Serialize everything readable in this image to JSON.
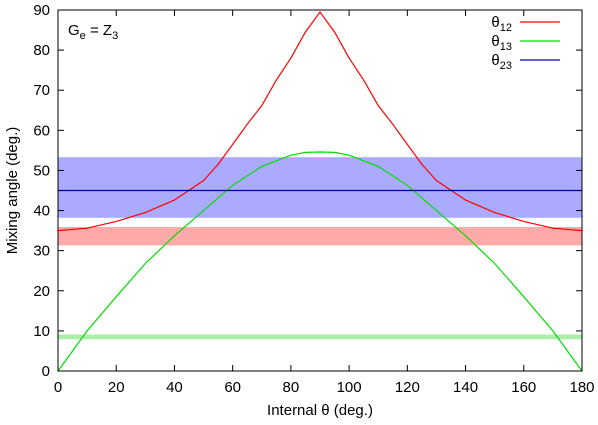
{
  "chart_data": {
    "type": "line",
    "xlabel": "Internal θ (deg.)",
    "ylabel": "Mixing angle (deg.)",
    "xlim": [
      0,
      180
    ],
    "ylim": [
      0,
      90
    ],
    "xticks": [
      0,
      20,
      40,
      60,
      80,
      100,
      120,
      140,
      160,
      180
    ],
    "yticks": [
      0,
      10,
      20,
      30,
      40,
      50,
      60,
      70,
      80,
      90
    ],
    "grid": false,
    "legend_position": "top-right",
    "annotation": {
      "base": "G",
      "base_sub": "e",
      "mid": " = Z",
      "mid_sub": "3"
    },
    "bands": [
      {
        "name": "theta23-band",
        "y_range": [
          38.2,
          53.3
        ],
        "color": "#aaaaff"
      },
      {
        "name": "theta12-band",
        "y_range": [
          31.3,
          35.9
        ],
        "color": "#ffaaaa"
      },
      {
        "name": "theta13-band",
        "y_range": [
          7.9,
          9.1
        ],
        "color": "#aaeeaa"
      }
    ],
    "series": [
      {
        "name": "θ12",
        "label_main": "θ",
        "label_sub": "12",
        "color": "#ff0000",
        "x": [
          0,
          10,
          20,
          30,
          40,
          50,
          55,
          60,
          65,
          70,
          75,
          80,
          85,
          88,
          90,
          92,
          95,
          100,
          105,
          110,
          115,
          120,
          125,
          130,
          140,
          150,
          160,
          170,
          180
        ],
        "y": [
          35,
          35.6,
          37.3,
          39.5,
          42.6,
          47.5,
          51.5,
          56.5,
          61.5,
          66.2,
          72.5,
          78,
          84.5,
          87.5,
          89.5,
          87.5,
          84.5,
          78,
          72.5,
          66.2,
          61.5,
          56.5,
          51.5,
          47.5,
          42.6,
          39.5,
          37.3,
          35.6,
          35
        ]
      },
      {
        "name": "θ13",
        "label_main": "θ",
        "label_sub": "13",
        "color": "#00dd00",
        "x": [
          0,
          10,
          20,
          30,
          40,
          50,
          60,
          70,
          80,
          85,
          90,
          95,
          100,
          110,
          120,
          130,
          140,
          150,
          160,
          170,
          180
        ],
        "y": [
          0,
          10,
          18.5,
          26.8,
          33.7,
          40,
          46.3,
          51,
          53.8,
          54.5,
          54.6,
          54.5,
          53.8,
          51,
          46.3,
          40,
          33.7,
          26.8,
          18.5,
          10,
          0
        ]
      },
      {
        "name": "θ23",
        "label_main": "θ",
        "label_sub": "23",
        "color": "#0000aa",
        "x": [
          0,
          180
        ],
        "y": [
          45,
          45
        ]
      }
    ]
  }
}
